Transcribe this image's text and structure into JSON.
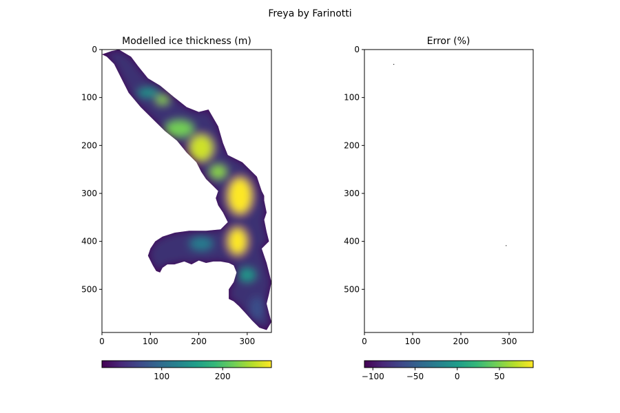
{
  "figure": {
    "suptitle": "Freya by Farinotti"
  },
  "colormap": [
    "#440154",
    "#482878",
    "#3e4989",
    "#31688e",
    "#26828e",
    "#1f9e89",
    "#35b779",
    "#6ece58",
    "#b5de2b",
    "#fde725"
  ],
  "chart_data": [
    {
      "type": "heatmap",
      "title": "Modelled ice thickness (m)",
      "xlabel": "",
      "ylabel": "",
      "xlim": [
        0,
        350
      ],
      "ylim": [
        590,
        0
      ],
      "x_ticks": [
        "0",
        "100",
        "200",
        "300"
      ],
      "y_ticks": [
        "0",
        "100",
        "200",
        "300",
        "400",
        "500"
      ],
      "colorbar": {
        "ticks": [
          "100",
          "200"
        ],
        "range": [
          2,
          280
        ],
        "orientation": "horizontal",
        "placement": "bottom"
      },
      "glacier_outline": [
        [
          0,
          10
        ],
        [
          20,
          3
        ],
        [
          35,
          0
        ],
        [
          60,
          15
        ],
        [
          75,
          35
        ],
        [
          95,
          60
        ],
        [
          120,
          75
        ],
        [
          150,
          100
        ],
        [
          175,
          120
        ],
        [
          200,
          130
        ],
        [
          220,
          125
        ],
        [
          240,
          160
        ],
        [
          250,
          195
        ],
        [
          260,
          220
        ],
        [
          290,
          235
        ],
        [
          320,
          265
        ],
        [
          325,
          280
        ],
        [
          330,
          295
        ],
        [
          335,
          305
        ],
        [
          335,
          315
        ],
        [
          340,
          340
        ],
        [
          335,
          355
        ],
        [
          340,
          380
        ],
        [
          345,
          400
        ],
        [
          330,
          415
        ],
        [
          340,
          445
        ],
        [
          350,
          485
        ],
        [
          345,
          510
        ],
        [
          340,
          530
        ],
        [
          345,
          550
        ],
        [
          350,
          568
        ],
        [
          340,
          585
        ],
        [
          325,
          580
        ],
        [
          310,
          565
        ],
        [
          295,
          548
        ],
        [
          283,
          535
        ],
        [
          272,
          525
        ],
        [
          262,
          520
        ],
        [
          262,
          500
        ],
        [
          272,
          485
        ],
        [
          278,
          465
        ],
        [
          272,
          450
        ],
        [
          262,
          445
        ],
        [
          245,
          442
        ],
        [
          230,
          442
        ],
        [
          215,
          445
        ],
        [
          200,
          440
        ],
        [
          185,
          448
        ],
        [
          170,
          442
        ],
        [
          150,
          448
        ],
        [
          135,
          448
        ],
        [
          125,
          455
        ],
        [
          120,
          465
        ],
        [
          112,
          462
        ],
        [
          105,
          450
        ],
        [
          95,
          430
        ],
        [
          100,
          415
        ],
        [
          110,
          400
        ],
        [
          125,
          390
        ],
        [
          150,
          382
        ],
        [
          180,
          378
        ],
        [
          215,
          378
        ],
        [
          245,
          375
        ],
        [
          260,
          360
        ],
        [
          250,
          340
        ],
        [
          240,
          325
        ],
        [
          235,
          310
        ],
        [
          240,
          295
        ],
        [
          230,
          285
        ],
        [
          215,
          270
        ],
        [
          205,
          255
        ],
        [
          195,
          235
        ],
        [
          175,
          215
        ],
        [
          155,
          190
        ],
        [
          130,
          170
        ],
        [
          110,
          150
        ],
        [
          80,
          120
        ],
        [
          55,
          90
        ],
        [
          40,
          60
        ],
        [
          25,
          30
        ],
        [
          10,
          15
        ]
      ],
      "thick_zones": [
        {
          "cx": 95,
          "cy": 90,
          "rx": 22,
          "ry": 10,
          "value": 150
        },
        {
          "cx": 125,
          "cy": 105,
          "rx": 14,
          "ry": 10,
          "value": 230
        },
        {
          "cx": 160,
          "cy": 165,
          "rx": 30,
          "ry": 18,
          "value": 220
        },
        {
          "cx": 205,
          "cy": 205,
          "rx": 25,
          "ry": 28,
          "value": 260
        },
        {
          "cx": 240,
          "cy": 255,
          "rx": 18,
          "ry": 15,
          "value": 230
        },
        {
          "cx": 285,
          "cy": 305,
          "rx": 25,
          "ry": 38,
          "value": 280
        },
        {
          "cx": 280,
          "cy": 400,
          "rx": 20,
          "ry": 28,
          "value": 280
        },
        {
          "cx": 205,
          "cy": 405,
          "rx": 25,
          "ry": 15,
          "value": 120
        },
        {
          "cx": 300,
          "cy": 470,
          "rx": 18,
          "ry": 15,
          "value": 150
        },
        {
          "cx": 320,
          "cy": 540,
          "rx": 15,
          "ry": 25,
          "value": 70
        }
      ]
    },
    {
      "type": "heatmap",
      "title": "Error (%)",
      "xlabel": "",
      "ylabel": "",
      "xlim": [
        0,
        350
      ],
      "ylim": [
        590,
        0
      ],
      "x_ticks": [
        "0",
        "100",
        "200",
        "300"
      ],
      "y_ticks": [
        "0",
        "100",
        "200",
        "300",
        "400",
        "500"
      ],
      "colorbar": {
        "ticks": [
          "−100",
          "−50",
          "0",
          "50"
        ],
        "range": [
          -110,
          90
        ],
        "orientation": "horizontal",
        "placement": "bottom"
      },
      "points": [
        {
          "x": 60,
          "y": 30
        },
        {
          "x": 293,
          "y": 408
        }
      ]
    }
  ]
}
